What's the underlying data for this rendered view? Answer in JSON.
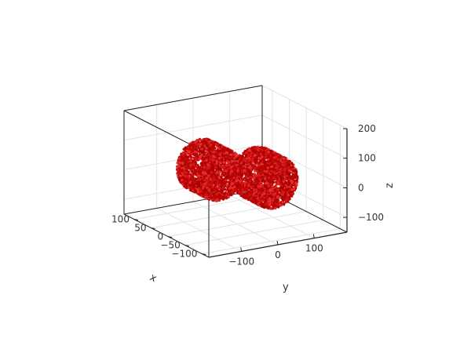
{
  "chart_data": {
    "type": "scatter",
    "dimensions": 3,
    "xlabel": "x",
    "ylabel": "y",
    "zlabel": "z",
    "xlim": [
      -120,
      130
    ],
    "ylim": [
      -190,
      190
    ],
    "zlim": [
      -150,
      200
    ],
    "x_ticks": [
      {
        "value": -100,
        "label": "−100"
      },
      {
        "value": -50,
        "label": "−50"
      },
      {
        "value": 0,
        "label": "0"
      },
      {
        "value": 50,
        "label": "50"
      },
      {
        "value": 100,
        "label": "100"
      }
    ],
    "y_ticks": [
      {
        "value": -100,
        "label": "−100"
      },
      {
        "value": 0,
        "label": "0"
      },
      {
        "value": 100,
        "label": "100"
      }
    ],
    "z_ticks": [
      {
        "value": -100,
        "label": "−100"
      },
      {
        "value": 0,
        "label": "0"
      },
      {
        "value": 100,
        "label": "100"
      },
      {
        "value": 200,
        "label": "200"
      }
    ],
    "grid": true,
    "legend": false,
    "marker_color": "#c00000",
    "shapes": [
      {
        "shape": "ring",
        "center": [
          0,
          -75,
          50
        ],
        "outer_radius": 140,
        "inner_radius": 12,
        "thickness": 60
      },
      {
        "shape": "ring",
        "center": [
          0,
          75,
          -10
        ],
        "outer_radius": 140,
        "inner_radius": 12,
        "thickness": 60
      }
    ]
  }
}
